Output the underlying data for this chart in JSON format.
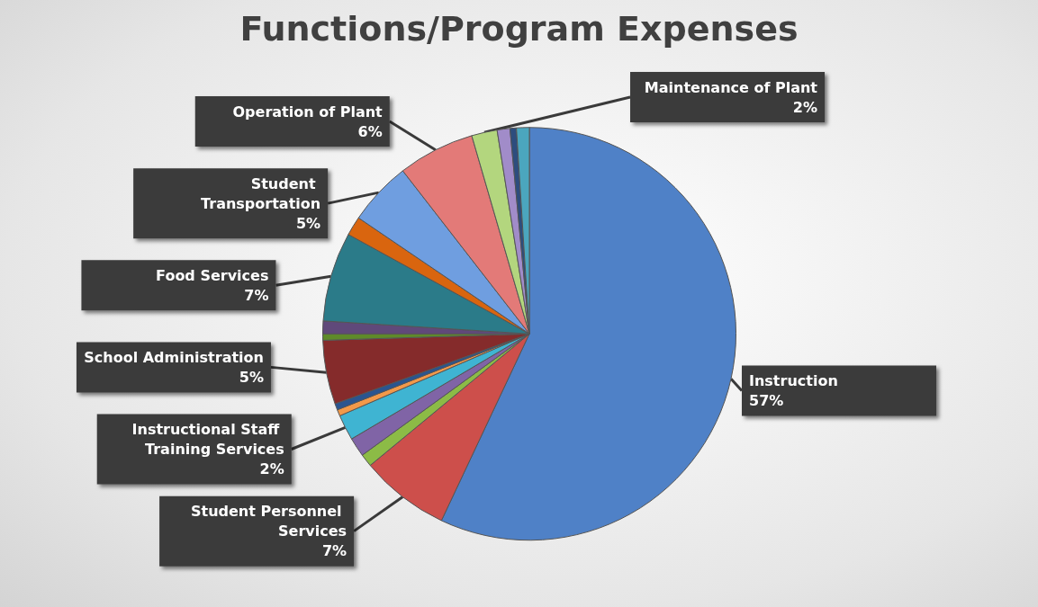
{
  "chart_data": {
    "type": "pie",
    "title": "Functions/Program Expenses",
    "categories": [
      "Instruction",
      "Student Personnel Services",
      null,
      null,
      "Instructional Staff Training Services",
      null,
      null,
      "School Administration",
      null,
      null,
      "Food Services",
      null,
      "Student Transportation",
      "Operation of Plant",
      "Maintenance of Plant",
      null,
      null,
      null
    ],
    "values": [
      57,
      7,
      1,
      1.5,
      2,
      0.5,
      0.5,
      5,
      0.5,
      1,
      7,
      1.5,
      5,
      6,
      2,
      1,
      0.5,
      1
    ],
    "value_labels": [
      "57%",
      "7%",
      null,
      null,
      "2%",
      null,
      null,
      "5%",
      null,
      null,
      "7%",
      null,
      "5%",
      "6%",
      "2%",
      null,
      null,
      null
    ],
    "colors": [
      "#4f81c7",
      "#cd4f4b",
      "#8cbb46",
      "#8064a6",
      "#3fb4d2",
      "#f2994a",
      "#2a5590",
      "#852b2b",
      "#5f8a2a",
      "#60497a",
      "#2b7b89",
      "#d9650f",
      "#6f9ee0",
      "#e37a78",
      "#b3d67e",
      "#a18cc9",
      "#2d4d7e",
      "#4ba6be"
    ],
    "legend": false
  }
}
